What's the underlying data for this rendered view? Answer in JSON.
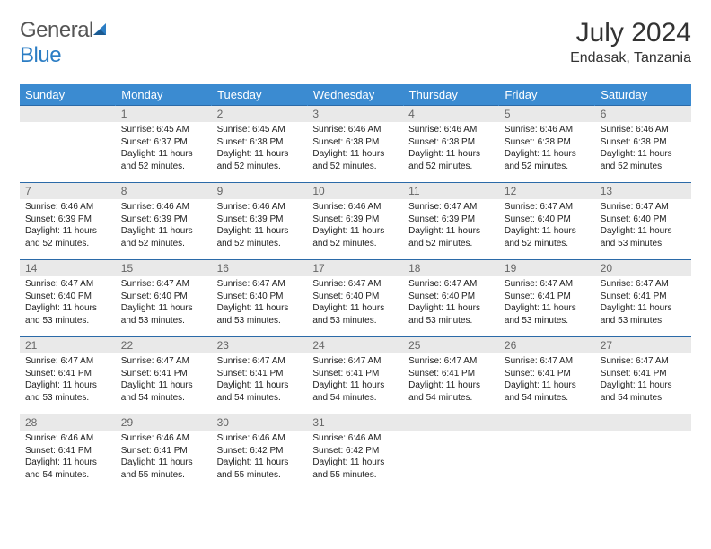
{
  "brand": {
    "name_gray": "General",
    "name_blue": "Blue"
  },
  "title": "July 2024",
  "location": "Endasak, Tanzania",
  "colors": {
    "header_bg": "#3b8bd1",
    "header_text": "#ffffff",
    "row_divider": "#2b6aa8",
    "daynum_bg": "#e9e9e9",
    "daynum_text": "#666666",
    "body_text": "#222222",
    "logo_gray": "#555555",
    "logo_blue": "#2b7dc4"
  },
  "weekdays": [
    "Sunday",
    "Monday",
    "Tuesday",
    "Wednesday",
    "Thursday",
    "Friday",
    "Saturday"
  ],
  "weeks": [
    [
      null,
      {
        "n": "1",
        "sr": "6:45 AM",
        "ss": "6:37 PM",
        "dl": "11 hours and 52 minutes."
      },
      {
        "n": "2",
        "sr": "6:45 AM",
        "ss": "6:38 PM",
        "dl": "11 hours and 52 minutes."
      },
      {
        "n": "3",
        "sr": "6:46 AM",
        "ss": "6:38 PM",
        "dl": "11 hours and 52 minutes."
      },
      {
        "n": "4",
        "sr": "6:46 AM",
        "ss": "6:38 PM",
        "dl": "11 hours and 52 minutes."
      },
      {
        "n": "5",
        "sr": "6:46 AM",
        "ss": "6:38 PM",
        "dl": "11 hours and 52 minutes."
      },
      {
        "n": "6",
        "sr": "6:46 AM",
        "ss": "6:38 PM",
        "dl": "11 hours and 52 minutes."
      }
    ],
    [
      {
        "n": "7",
        "sr": "6:46 AM",
        "ss": "6:39 PM",
        "dl": "11 hours and 52 minutes."
      },
      {
        "n": "8",
        "sr": "6:46 AM",
        "ss": "6:39 PM",
        "dl": "11 hours and 52 minutes."
      },
      {
        "n": "9",
        "sr": "6:46 AM",
        "ss": "6:39 PM",
        "dl": "11 hours and 52 minutes."
      },
      {
        "n": "10",
        "sr": "6:46 AM",
        "ss": "6:39 PM",
        "dl": "11 hours and 52 minutes."
      },
      {
        "n": "11",
        "sr": "6:47 AM",
        "ss": "6:39 PM",
        "dl": "11 hours and 52 minutes."
      },
      {
        "n": "12",
        "sr": "6:47 AM",
        "ss": "6:40 PM",
        "dl": "11 hours and 52 minutes."
      },
      {
        "n": "13",
        "sr": "6:47 AM",
        "ss": "6:40 PM",
        "dl": "11 hours and 53 minutes."
      }
    ],
    [
      {
        "n": "14",
        "sr": "6:47 AM",
        "ss": "6:40 PM",
        "dl": "11 hours and 53 minutes."
      },
      {
        "n": "15",
        "sr": "6:47 AM",
        "ss": "6:40 PM",
        "dl": "11 hours and 53 minutes."
      },
      {
        "n": "16",
        "sr": "6:47 AM",
        "ss": "6:40 PM",
        "dl": "11 hours and 53 minutes."
      },
      {
        "n": "17",
        "sr": "6:47 AM",
        "ss": "6:40 PM",
        "dl": "11 hours and 53 minutes."
      },
      {
        "n": "18",
        "sr": "6:47 AM",
        "ss": "6:40 PM",
        "dl": "11 hours and 53 minutes."
      },
      {
        "n": "19",
        "sr": "6:47 AM",
        "ss": "6:41 PM",
        "dl": "11 hours and 53 minutes."
      },
      {
        "n": "20",
        "sr": "6:47 AM",
        "ss": "6:41 PM",
        "dl": "11 hours and 53 minutes."
      }
    ],
    [
      {
        "n": "21",
        "sr": "6:47 AM",
        "ss": "6:41 PM",
        "dl": "11 hours and 53 minutes."
      },
      {
        "n": "22",
        "sr": "6:47 AM",
        "ss": "6:41 PM",
        "dl": "11 hours and 54 minutes."
      },
      {
        "n": "23",
        "sr": "6:47 AM",
        "ss": "6:41 PM",
        "dl": "11 hours and 54 minutes."
      },
      {
        "n": "24",
        "sr": "6:47 AM",
        "ss": "6:41 PM",
        "dl": "11 hours and 54 minutes."
      },
      {
        "n": "25",
        "sr": "6:47 AM",
        "ss": "6:41 PM",
        "dl": "11 hours and 54 minutes."
      },
      {
        "n": "26",
        "sr": "6:47 AM",
        "ss": "6:41 PM",
        "dl": "11 hours and 54 minutes."
      },
      {
        "n": "27",
        "sr": "6:47 AM",
        "ss": "6:41 PM",
        "dl": "11 hours and 54 minutes."
      }
    ],
    [
      {
        "n": "28",
        "sr": "6:46 AM",
        "ss": "6:41 PM",
        "dl": "11 hours and 54 minutes."
      },
      {
        "n": "29",
        "sr": "6:46 AM",
        "ss": "6:41 PM",
        "dl": "11 hours and 55 minutes."
      },
      {
        "n": "30",
        "sr": "6:46 AM",
        "ss": "6:42 PM",
        "dl": "11 hours and 55 minutes."
      },
      {
        "n": "31",
        "sr": "6:46 AM",
        "ss": "6:42 PM",
        "dl": "11 hours and 55 minutes."
      },
      null,
      null,
      null
    ]
  ],
  "labels": {
    "sunrise": "Sunrise:",
    "sunset": "Sunset:",
    "daylight": "Daylight:"
  }
}
